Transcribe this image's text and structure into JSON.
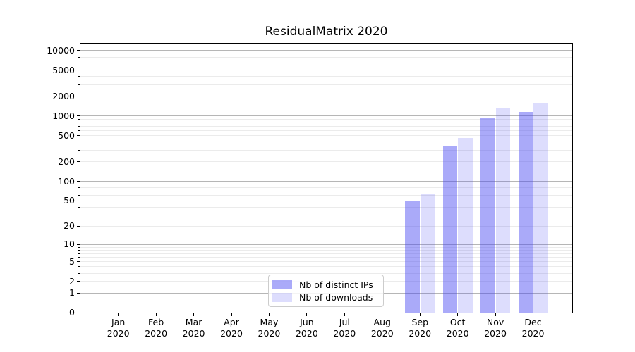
{
  "chart_data": {
    "type": "bar",
    "title": "ResidualMatrix 2020",
    "yscale": "log1p",
    "grid": "both",
    "legend_position": "lower center-left inside plot",
    "categories": [
      "Jan",
      "Feb",
      "Mar",
      "Apr",
      "May",
      "Jun",
      "Jul",
      "Aug",
      "Sep",
      "Oct",
      "Nov",
      "Dec"
    ],
    "category_year": "2020",
    "series": [
      {
        "name": "Nb of distinct IPs",
        "color": "rgba(66,66,242,0.45)",
        "values": [
          0,
          0,
          0,
          0,
          0,
          0,
          0,
          0,
          50,
          350,
          950,
          1150
        ]
      },
      {
        "name": "Nb of downloads",
        "color": "rgba(66,66,242,0.18)",
        "values": [
          0,
          0,
          0,
          0,
          0,
          0,
          0,
          0,
          63,
          465,
          1300,
          1550
        ]
      }
    ],
    "y_ticks": [
      "0",
      "1",
      "2",
      "5",
      "10",
      "20",
      "50",
      "100",
      "200",
      "500",
      "1000",
      "2000",
      "5000",
      "10000"
    ],
    "y_tick_values": [
      0,
      1,
      2,
      5,
      10,
      20,
      50,
      100,
      200,
      500,
      1000,
      2000,
      5000,
      10000
    ],
    "y_major_gridline_values": [
      1,
      10,
      100,
      1000,
      10000
    ],
    "ylim": [
      0,
      12800
    ],
    "colors": {
      "major_grid": "#b6b6b6",
      "minor_grid": "#ebebeb",
      "axis": "#000000",
      "text": "#000000",
      "legend_border": "#cccccc",
      "background": "#ffffff"
    }
  }
}
